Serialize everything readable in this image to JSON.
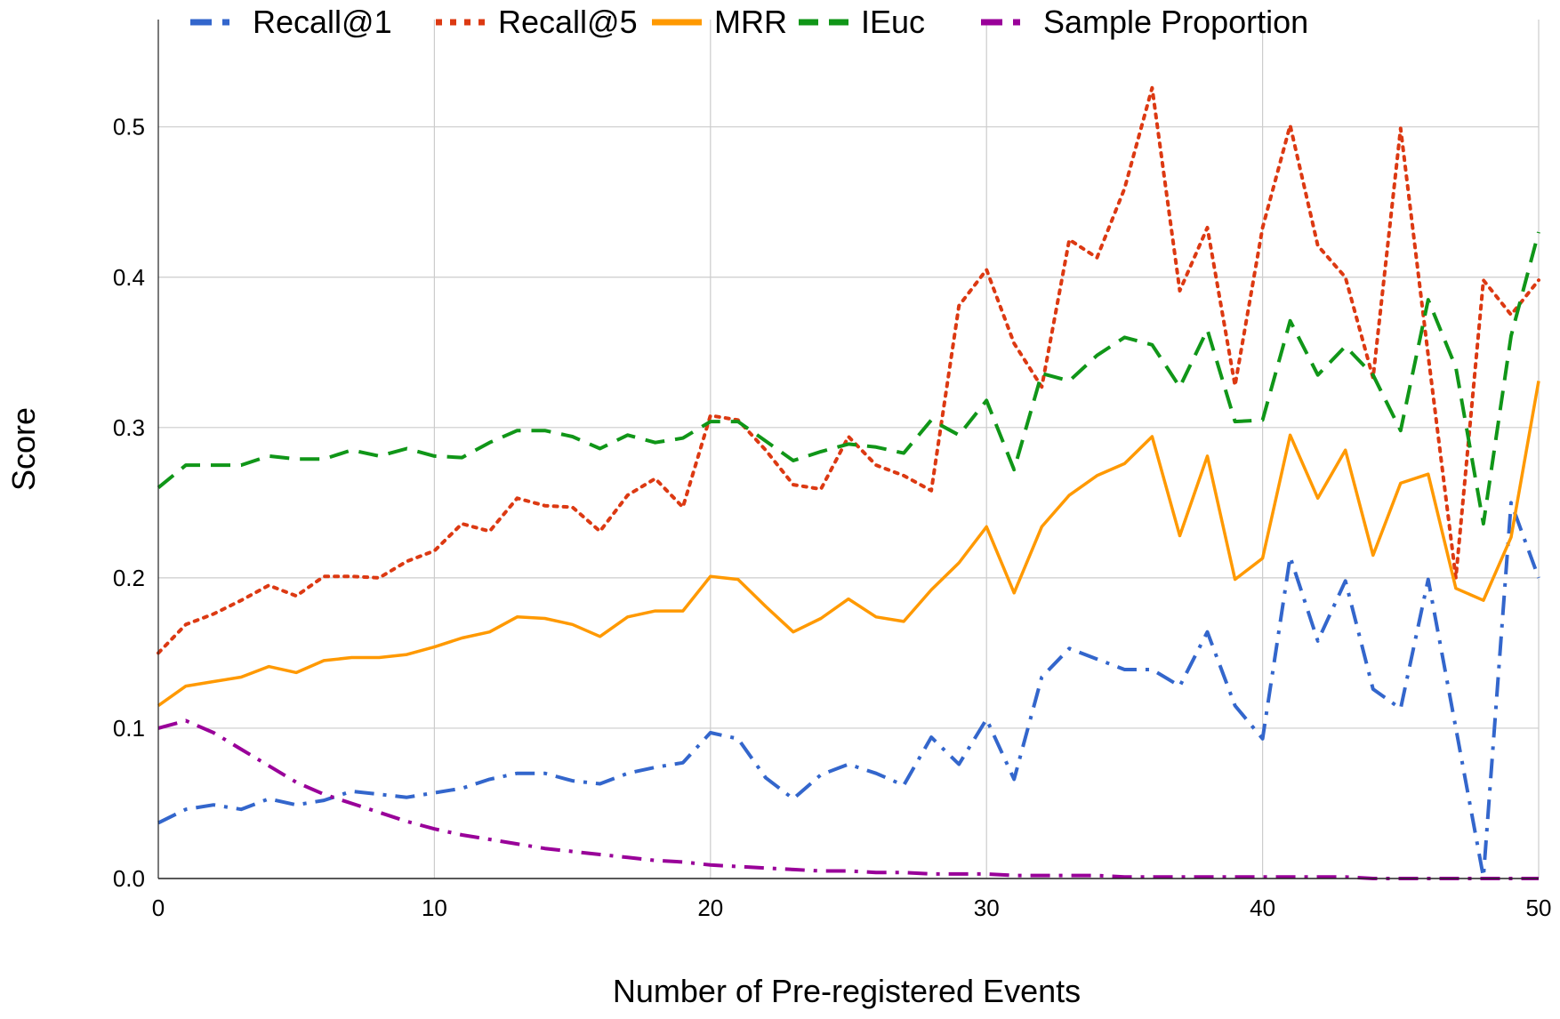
{
  "chart_data": {
    "type": "line",
    "title": "",
    "xlabel": "Number of Pre-registered Events",
    "ylabel": "Score",
    "xlim": [
      0,
      50
    ],
    "ylim": [
      0,
      0.5714
    ],
    "x_ticks": [
      "0",
      "10",
      "20",
      "30",
      "40",
      "50"
    ],
    "y_ticks": [
      "0.0",
      "0.1",
      "0.2",
      "0.3",
      "0.4",
      "0.5"
    ],
    "grid": true,
    "legend_position": "top",
    "x": [
      0,
      1,
      2,
      3,
      4,
      5,
      6,
      7,
      8,
      9,
      10,
      11,
      12,
      13,
      14,
      15,
      16,
      17,
      18,
      19,
      20,
      21,
      22,
      23,
      24,
      25,
      26,
      27,
      28,
      29,
      30,
      31,
      32,
      33,
      34,
      35,
      36,
      37,
      38,
      39,
      40,
      41,
      42,
      43,
      44,
      45,
      46,
      47,
      48,
      49,
      50
    ],
    "series": [
      {
        "name": "Recall@1",
        "color": "#3366cc",
        "dash": "dashdot",
        "values": [
          0.037,
          0.046,
          0.049,
          0.046,
          0.053,
          0.049,
          0.052,
          0.058,
          0.056,
          0.054,
          0.057,
          0.06,
          0.066,
          0.07,
          0.07,
          0.065,
          0.063,
          0.07,
          0.074,
          0.077,
          0.097,
          0.093,
          0.067,
          0.053,
          0.069,
          0.076,
          0.07,
          0.062,
          0.094,
          0.076,
          0.106,
          0.066,
          0.134,
          0.153,
          0.146,
          0.139,
          0.139,
          0.128,
          0.164,
          0.115,
          0.093,
          0.214,
          0.158,
          0.198,
          0.126,
          0.113,
          0.199,
          0.1,
          0.001,
          0.25,
          0.2
        ]
      },
      {
        "name": "Recall@5",
        "color": "#dc3912",
        "dash": "dotted",
        "values": [
          0.15,
          0.169,
          0.176,
          0.185,
          0.195,
          0.188,
          0.201,
          0.201,
          0.2,
          0.211,
          0.218,
          0.236,
          0.231,
          0.253,
          0.248,
          0.247,
          0.231,
          0.255,
          0.266,
          0.247,
          0.308,
          0.305,
          0.285,
          0.262,
          0.259,
          0.294,
          0.275,
          0.268,
          0.258,
          0.381,
          0.405,
          0.356,
          0.327,
          0.425,
          0.413,
          0.459,
          0.526,
          0.391,
          0.433,
          0.328,
          0.433,
          0.501,
          0.421,
          0.4,
          0.333,
          0.499,
          0.348,
          0.2,
          0.398,
          0.375,
          0.398
        ]
      },
      {
        "name": "MRR",
        "color": "#ff9900",
        "dash": "solid",
        "values": [
          0.115,
          0.128,
          0.131,
          0.134,
          0.141,
          0.137,
          0.145,
          0.147,
          0.147,
          0.149,
          0.154,
          0.16,
          0.164,
          0.174,
          0.173,
          0.169,
          0.161,
          0.174,
          0.178,
          0.178,
          0.201,
          0.199,
          0.181,
          0.164,
          0.173,
          0.186,
          0.174,
          0.171,
          0.192,
          0.21,
          0.234,
          0.19,
          0.234,
          0.255,
          0.268,
          0.276,
          0.294,
          0.228,
          0.281,
          0.199,
          0.213,
          0.295,
          0.253,
          0.285,
          0.215,
          0.263,
          0.269,
          0.193,
          0.185,
          0.227,
          0.331
        ]
      },
      {
        "name": "IEuc",
        "color": "#109618",
        "dash": "dashed",
        "values": [
          0.26,
          0.275,
          0.275,
          0.275,
          0.281,
          0.279,
          0.279,
          0.285,
          0.281,
          0.286,
          0.281,
          0.28,
          0.29,
          0.298,
          0.298,
          0.294,
          0.286,
          0.295,
          0.29,
          0.293,
          0.304,
          0.304,
          0.291,
          0.278,
          0.284,
          0.289,
          0.287,
          0.283,
          0.305,
          0.295,
          0.318,
          0.272,
          0.336,
          0.331,
          0.348,
          0.36,
          0.355,
          0.327,
          0.365,
          0.304,
          0.305,
          0.371,
          0.335,
          0.354,
          0.335,
          0.298,
          0.385,
          0.34,
          0.236,
          0.361,
          0.43
        ]
      },
      {
        "name": "Sample Proportion",
        "color": "#990099",
        "dash": "dashdot",
        "values": [
          0.1,
          0.105,
          0.097,
          0.086,
          0.075,
          0.064,
          0.056,
          0.05,
          0.044,
          0.038,
          0.033,
          0.029,
          0.026,
          0.023,
          0.02,
          0.018,
          0.016,
          0.014,
          0.012,
          0.011,
          0.009,
          0.008,
          0.007,
          0.006,
          0.005,
          0.005,
          0.004,
          0.004,
          0.003,
          0.003,
          0.003,
          0.002,
          0.002,
          0.002,
          0.002,
          0.001,
          0.001,
          0.001,
          0.001,
          0.001,
          0.001,
          0.001,
          0.001,
          0.001,
          0.0,
          0.0,
          0.0,
          0.0,
          0.0,
          0.0,
          0.0
        ]
      }
    ]
  }
}
